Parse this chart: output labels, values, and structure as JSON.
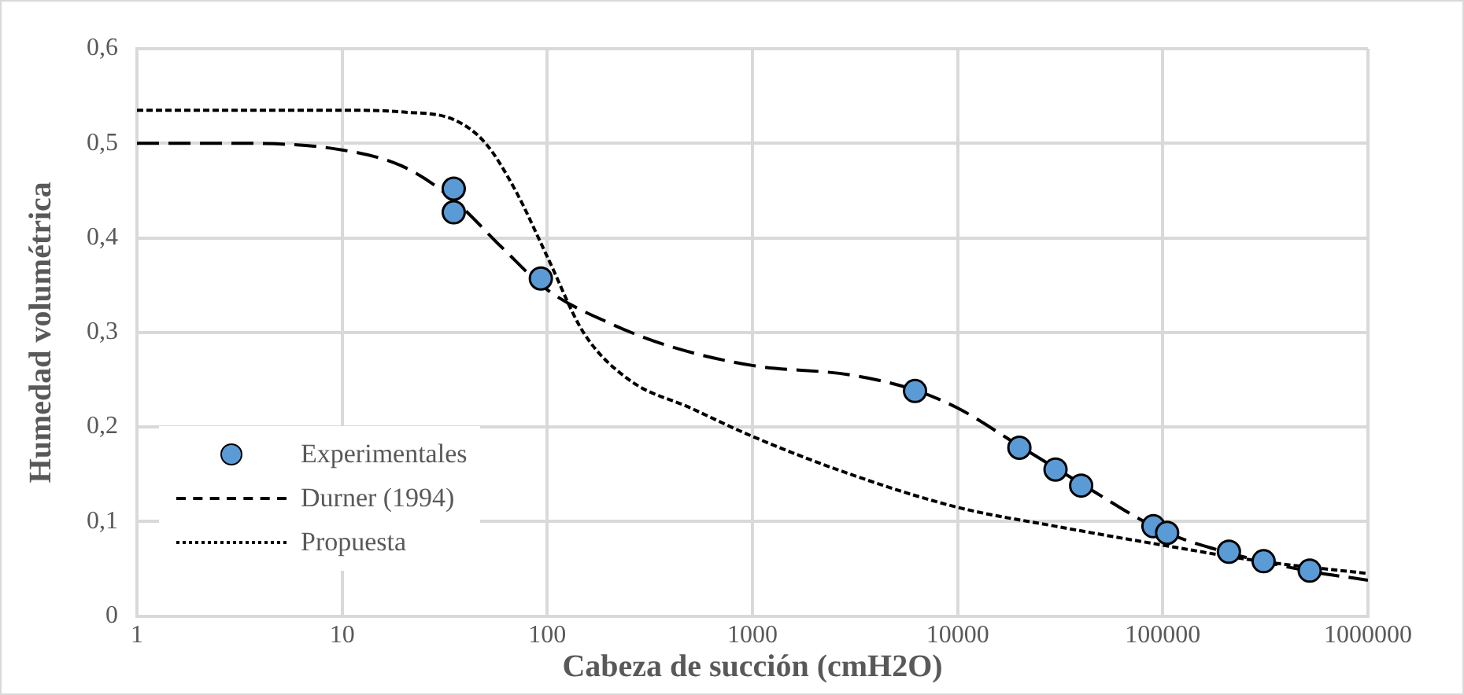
{
  "chart_data": {
    "type": "line",
    "xlabel": "Cabeza de succión (cmH2O)",
    "ylabel": "Humedad volumétrica",
    "log": "x",
    "grid": true,
    "legend": "bottom left",
    "xlim": [
      1,
      1000000
    ],
    "xticks": [
      1,
      10,
      100,
      1000,
      10000,
      100000,
      1000000
    ],
    "ylim": [
      0,
      0.6
    ],
    "yticks": [
      0,
      {
        "value": 0.1,
        "label": "0,1"
      },
      {
        "value": 0.2,
        "label": "0,2"
      },
      {
        "value": 0.3,
        "label": "0,3"
      },
      {
        "value": 0.4,
        "label": "0,4"
      },
      {
        "value": 0.5,
        "label": "0,5"
      },
      {
        "value": 0.6,
        "label": "0,6"
      }
    ],
    "series": [
      {
        "name": "Experimentales",
        "type": "scatter",
        "marker": "circle",
        "color": "#5b9bd5",
        "x": [
          35,
          35,
          93,
          6200,
          20000,
          30000,
          40000,
          90000,
          105000,
          210000,
          310000,
          520000
        ],
        "values": [
          0.452,
          0.427,
          0.357,
          0.238,
          0.178,
          0.155,
          0.138,
          0.095,
          0.088,
          0.068,
          0.058,
          0.048
        ]
      },
      {
        "name": "Durner (1994)",
        "type": "line",
        "line_style": "dashed",
        "marker": "none",
        "color": "#000000",
        "x": [
          1,
          3,
          10,
          20,
          35,
          60,
          100,
          200,
          400,
          1000,
          3000,
          6000,
          10000,
          20000,
          40000,
          100000,
          200000,
          500000,
          1000000
        ],
        "values": [
          0.5,
          0.5,
          0.493,
          0.475,
          0.44,
          0.39,
          0.345,
          0.31,
          0.285,
          0.265,
          0.255,
          0.24,
          0.22,
          0.18,
          0.14,
          0.09,
          0.068,
          0.048,
          0.038
        ]
      },
      {
        "name": "Propuesta",
        "type": "line",
        "line_style": "dotted",
        "marker": "none",
        "color": "#000000",
        "x": [
          1,
          10,
          20,
          35,
          50,
          70,
          100,
          150,
          250,
          500,
          1000,
          3000,
          10000,
          30000,
          100000,
          300000,
          1000000
        ],
        "values": [
          0.535,
          0.535,
          0.533,
          0.525,
          0.5,
          0.45,
          0.38,
          0.3,
          0.25,
          0.22,
          0.19,
          0.15,
          0.115,
          0.095,
          0.075,
          0.058,
          0.045
        ]
      }
    ]
  }
}
